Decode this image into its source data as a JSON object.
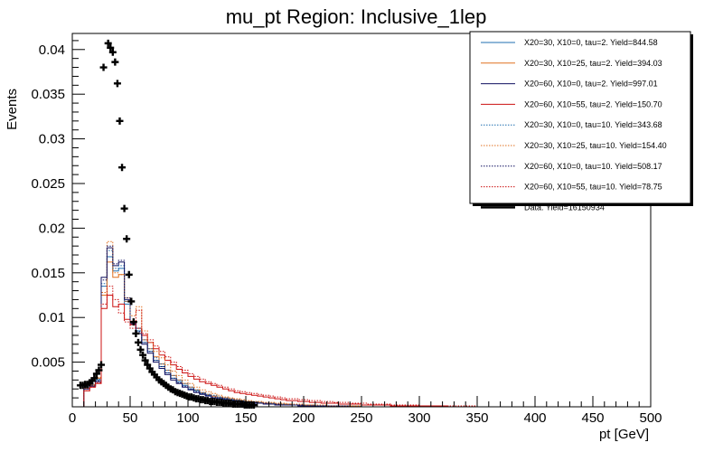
{
  "chart_data": {
    "type": "histogram",
    "title": "mu_pt Region: Inclusive_1lep",
    "xlabel": "pt [GeV]",
    "ylabel": "Events",
    "xlim": [
      0,
      500
    ],
    "ylim": [
      0,
      0.0418
    ],
    "x_ticks": [
      0,
      50,
      100,
      150,
      200,
      250,
      300,
      350,
      400,
      450,
      500
    ],
    "x_tick_labels": [
      "0",
      "50",
      "100",
      "150",
      "200",
      "250",
      "300",
      "350",
      "400",
      "450",
      "500"
    ],
    "y_ticks": [
      0.005,
      0.01,
      0.015,
      0.02,
      0.025,
      0.03,
      0.035,
      0.04
    ],
    "y_tick_labels": [
      "0.005",
      "0.01",
      "0.015",
      "0.02",
      "0.025",
      "0.03",
      "0.035",
      "0.04"
    ],
    "bin_edges_start": 0,
    "bin_width": 5,
    "legend_position": "top-right",
    "series": [
      {
        "name": "X20=30, X10=0, tau=2. Yield=844.58",
        "label": "X20=30, X10=0, tau=2. Yield=844.58",
        "color": "#1f6fb0",
        "style": "solid",
        "values": [
          0.0,
          0.0,
          0.0022,
          0.0025,
          0.003,
          0.0135,
          0.0168,
          0.0152,
          0.0155,
          0.0115,
          0.0092,
          0.0085,
          0.0072,
          0.0062,
          0.0052,
          0.0045,
          0.0038,
          0.0032,
          0.0028,
          0.0024,
          0.002,
          0.0018,
          0.0015,
          0.0013,
          0.0012,
          0.001,
          0.0009,
          0.0008,
          0.0007,
          0.0006,
          0.0005,
          0.0005,
          0.0004,
          0.0004,
          0.0003,
          0.0003,
          0.0003,
          0.0002,
          0.0002,
          0.0002,
          0.0002,
          0.0001,
          0.0001,
          0.0001,
          0.0001,
          0.0001,
          0.0001,
          0.0001,
          0.0001,
          0.0001,
          0.0,
          0.0,
          0.0,
          0.0,
          0.0,
          0.0,
          0.0,
          0.0,
          0.0,
          0.0,
          0.0,
          0.0,
          0.0,
          0.0,
          0.0,
          0.0,
          0.0,
          0.0,
          0.0,
          0.0,
          0.0,
          0.0,
          0.0,
          0.0,
          0.0,
          0.0,
          0.0,
          0.0,
          0.0,
          0.0,
          0.0,
          0.0,
          0.0,
          0.0,
          0.0,
          0.0,
          0.0,
          0.0,
          0.0,
          0.0,
          0.0,
          0.0,
          0.0,
          0.0,
          0.0,
          0.0,
          0.0,
          0.0,
          0.0,
          0.0
        ]
      },
      {
        "name": "X20=30, X10=25, tau=2. Yield=394.03",
        "label": "X20=30, X10=25, tau=2. Yield=394.03",
        "color": "#e07020",
        "style": "solid",
        "values": [
          0.0,
          0.0,
          0.0021,
          0.0024,
          0.0032,
          0.0125,
          0.0162,
          0.0145,
          0.0148,
          0.0118,
          0.0095,
          0.0088,
          0.0075,
          0.0065,
          0.0056,
          0.0048,
          0.0041,
          0.0035,
          0.003,
          0.0026,
          0.0022,
          0.0019,
          0.0016,
          0.0014,
          0.0012,
          0.0011,
          0.001,
          0.0009,
          0.0008,
          0.0007,
          0.0006,
          0.0005,
          0.0005,
          0.0004,
          0.0004,
          0.0003,
          0.0003,
          0.0003,
          0.0002,
          0.0002,
          0.0002,
          0.0002,
          0.0001,
          0.0001,
          0.0001,
          0.0001,
          0.0001,
          0.0001,
          0.0001,
          0.0001,
          0.0,
          0.0,
          0.0,
          0.0,
          0.0,
          0.0,
          0.0,
          0.0,
          0.0,
          0.0,
          0.0,
          0.0,
          0.0,
          0.0,
          0.0,
          0.0,
          0.0,
          0.0,
          0.0,
          0.0,
          0.0,
          0.0,
          0.0,
          0.0,
          0.0,
          0.0,
          0.0,
          0.0,
          0.0,
          0.0,
          0.0,
          0.0,
          0.0,
          0.0,
          0.0,
          0.0,
          0.0,
          0.0,
          0.0,
          0.0,
          0.0,
          0.0,
          0.0,
          0.0,
          0.0,
          0.0,
          0.0,
          0.0,
          0.0,
          0.0
        ]
      },
      {
        "name": "X20=60, X10=0, tau=2. Yield=997.01",
        "label": "X20=60, X10=0, tau=2. Yield=997.01",
        "color": "#101060",
        "style": "solid",
        "values": [
          0.0,
          0.0,
          0.002,
          0.0023,
          0.0028,
          0.0145,
          0.0178,
          0.0158,
          0.0162,
          0.012,
          0.0093,
          0.0082,
          0.007,
          0.006,
          0.005,
          0.0043,
          0.0036,
          0.003,
          0.0026,
          0.0022,
          0.0019,
          0.0016,
          0.0014,
          0.0012,
          0.001,
          0.0009,
          0.0008,
          0.0007,
          0.0006,
          0.0005,
          0.0005,
          0.0004,
          0.0004,
          0.0003,
          0.0003,
          0.0002,
          0.0002,
          0.0002,
          0.0002,
          0.0001,
          0.0001,
          0.0001,
          0.0001,
          0.0001,
          0.0001,
          0.0001,
          0.0001,
          0.0001,
          0.0,
          0.0,
          0.0,
          0.0,
          0.0,
          0.0,
          0.0,
          0.0,
          0.0,
          0.0,
          0.0,
          0.0,
          0.0,
          0.0,
          0.0,
          0.0,
          0.0,
          0.0,
          0.0,
          0.0,
          0.0,
          0.0,
          0.0,
          0.0,
          0.0,
          0.0,
          0.0,
          0.0,
          0.0,
          0.0,
          0.0,
          0.0,
          0.0,
          0.0,
          0.0,
          0.0,
          0.0,
          0.0,
          0.0,
          0.0,
          0.0,
          0.0,
          0.0,
          0.0,
          0.0,
          0.0,
          0.0,
          0.0,
          0.0,
          0.0,
          0.0,
          0.0
        ]
      },
      {
        "name": "X20=60, X10=55, tau=2. Yield=150.70",
        "label": "X20=60, X10=55, tau=2. Yield=150.70",
        "color": "#cc1111",
        "style": "solid",
        "values": [
          0.0,
          0.0,
          0.0018,
          0.0022,
          0.0026,
          0.011,
          0.0125,
          0.0112,
          0.0115,
          0.0098,
          0.0092,
          0.0088,
          0.008,
          0.0072,
          0.0065,
          0.0058,
          0.0052,
          0.0047,
          0.0042,
          0.0038,
          0.0034,
          0.0031,
          0.0028,
          0.0026,
          0.0024,
          0.0022,
          0.002,
          0.0018,
          0.0016,
          0.0015,
          0.0014,
          0.0013,
          0.0012,
          0.0011,
          0.001,
          0.0009,
          0.0008,
          0.0007,
          0.0007,
          0.0006,
          0.0006,
          0.0005,
          0.0005,
          0.0004,
          0.0004,
          0.0004,
          0.0003,
          0.0003,
          0.0003,
          0.0003,
          0.0002,
          0.0002,
          0.0002,
          0.0002,
          0.0002,
          0.0001,
          0.0001,
          0.0001,
          0.0001,
          0.0001,
          0.0001,
          0.0001,
          0.0001,
          0.0001,
          0.0001,
          0.0,
          0.0,
          0.0,
          0.0,
          0.0,
          0.0,
          0.0,
          0.0,
          0.0,
          0.0,
          0.0,
          0.0,
          0.0,
          0.0,
          0.0,
          0.0,
          0.0,
          0.0,
          0.0,
          0.0,
          0.0,
          0.0,
          0.0,
          0.0,
          0.0,
          0.0,
          0.0,
          0.0,
          0.0,
          0.0,
          0.0,
          0.0,
          0.0,
          0.0,
          0.0
        ]
      },
      {
        "name": "X20=30, X10=0, tau=10. Yield=343.68",
        "label": "X20=30, X10=0, tau=10. Yield=343.68",
        "color": "#1f6fb0",
        "style": "dotted",
        "values": [
          0.0,
          0.0,
          0.0022,
          0.0026,
          0.0031,
          0.0138,
          0.0175,
          0.0155,
          0.0158,
          0.0118,
          0.0095,
          0.0088,
          0.0075,
          0.0065,
          0.0055,
          0.0048,
          0.0041,
          0.0035,
          0.003,
          0.0026,
          0.0022,
          0.0019,
          0.0016,
          0.0014,
          0.0013,
          0.0011,
          0.001,
          0.0009,
          0.0008,
          0.0007,
          0.0006,
          0.0005,
          0.0005,
          0.0004,
          0.0004,
          0.0003,
          0.0003,
          0.0003,
          0.0002,
          0.0002,
          0.0002,
          0.0002,
          0.0001,
          0.0001,
          0.0001,
          0.0001,
          0.0001,
          0.0001,
          0.0001,
          0.0001,
          0.0,
          0.0,
          0.0,
          0.0,
          0.0,
          0.0,
          0.0,
          0.0,
          0.0,
          0.0,
          0.0,
          0.0,
          0.0,
          0.0,
          0.0,
          0.0,
          0.0,
          0.0,
          0.0,
          0.0,
          0.0,
          0.0,
          0.0,
          0.0,
          0.0,
          0.0,
          0.0,
          0.0,
          0.0,
          0.0,
          0.0,
          0.0,
          0.0,
          0.0,
          0.0,
          0.0,
          0.0,
          0.0,
          0.0,
          0.0,
          0.0,
          0.0,
          0.0,
          0.0,
          0.0,
          0.0,
          0.0,
          0.0,
          0.0,
          0.0
        ]
      },
      {
        "name": "X20=30, X10=25, tau=10. Yield=154.40",
        "label": "X20=30, X10=25, tau=10. Yield=154.40",
        "color": "#e07020",
        "style": "dotted",
        "values": [
          0.0,
          0.0,
          0.0021,
          0.0025,
          0.0033,
          0.0128,
          0.0185,
          0.015,
          0.0148,
          0.0122,
          0.0102,
          0.0112,
          0.0085,
          0.0072,
          0.0062,
          0.0055,
          0.0047,
          0.004,
          0.0035,
          0.003,
          0.0026,
          0.0022,
          0.0019,
          0.0017,
          0.0015,
          0.0013,
          0.0011,
          0.001,
          0.0009,
          0.0008,
          0.0007,
          0.0006,
          0.0006,
          0.0005,
          0.0005,
          0.0004,
          0.0004,
          0.0003,
          0.0003,
          0.0003,
          0.0002,
          0.0002,
          0.0002,
          0.0002,
          0.0001,
          0.0001,
          0.0001,
          0.0001,
          0.0001,
          0.0001,
          0.0,
          0.0,
          0.0,
          0.0,
          0.0,
          0.0,
          0.0,
          0.0,
          0.0,
          0.0,
          0.0,
          0.0,
          0.0,
          0.0,
          0.0,
          0.0,
          0.0,
          0.0,
          0.0,
          0.0,
          0.0,
          0.0,
          0.0,
          0.0,
          0.0,
          0.0,
          0.0,
          0.0,
          0.0,
          0.0,
          0.0,
          0.0,
          0.0,
          0.0,
          0.0,
          0.0,
          0.0,
          0.0,
          0.0,
          0.0,
          0.0,
          0.0,
          0.0,
          0.0,
          0.0,
          0.0,
          0.0,
          0.0,
          0.0,
          0.0
        ]
      },
      {
        "name": "X20=60, X10=0, tau=10. Yield=508.17",
        "label": "X20=60, X10=0, tau=10. Yield=508.17",
        "color": "#101060",
        "style": "dotted",
        "values": [
          0.0,
          0.0,
          0.002,
          0.0024,
          0.0029,
          0.0142,
          0.018,
          0.016,
          0.0164,
          0.0122,
          0.0094,
          0.0084,
          0.0072,
          0.0062,
          0.0052,
          0.0045,
          0.0038,
          0.0032,
          0.0027,
          0.0023,
          0.002,
          0.0017,
          0.0015,
          0.0013,
          0.0011,
          0.001,
          0.0009,
          0.0008,
          0.0007,
          0.0006,
          0.0005,
          0.0005,
          0.0004,
          0.0004,
          0.0003,
          0.0003,
          0.0002,
          0.0002,
          0.0002,
          0.0002,
          0.0001,
          0.0001,
          0.0001,
          0.0001,
          0.0001,
          0.0001,
          0.0001,
          0.0001,
          0.0,
          0.0,
          0.0,
          0.0,
          0.0,
          0.0,
          0.0,
          0.0,
          0.0,
          0.0,
          0.0,
          0.0,
          0.0,
          0.0,
          0.0,
          0.0,
          0.0,
          0.0,
          0.0,
          0.0,
          0.0,
          0.0,
          0.0,
          0.0,
          0.0,
          0.0,
          0.0,
          0.0,
          0.0,
          0.0,
          0.0,
          0.0,
          0.0,
          0.0,
          0.0,
          0.0,
          0.0,
          0.0,
          0.0,
          0.0,
          0.0,
          0.0,
          0.0,
          0.0,
          0.0,
          0.0,
          0.0,
          0.0,
          0.0,
          0.0,
          0.0,
          0.0
        ]
      },
      {
        "name": "X20=60, X10=55, tau=10. Yield=78.75",
        "label": "X20=60, X10=55, tau=10. Yield=78.75",
        "color": "#cc1111",
        "style": "dotted",
        "values": [
          0.0,
          0.0,
          0.0018,
          0.0022,
          0.0027,
          0.0115,
          0.0135,
          0.012,
          0.0105,
          0.0095,
          0.0088,
          0.0108,
          0.0082,
          0.0075,
          0.0068,
          0.0062,
          0.0056,
          0.005,
          0.0045,
          0.0041,
          0.0037,
          0.0034,
          0.0031,
          0.0028,
          0.0026,
          0.0024,
          0.0022,
          0.002,
          0.0018,
          0.0017,
          0.0016,
          0.0015,
          0.0014,
          0.0013,
          0.0012,
          0.0011,
          0.001,
          0.0009,
          0.0009,
          0.0008,
          0.0008,
          0.0007,
          0.0007,
          0.0006,
          0.0006,
          0.0005,
          0.0005,
          0.0005,
          0.0004,
          0.0004,
          0.0004,
          0.0003,
          0.0003,
          0.0003,
          0.0003,
          0.0002,
          0.0002,
          0.0002,
          0.0002,
          0.0002,
          0.0001,
          0.0001,
          0.0001,
          0.0001,
          0.0001,
          0.0001,
          0.0001,
          0.0001,
          0.0001,
          0.0001,
          0.0,
          0.0,
          0.0,
          0.0,
          0.0,
          0.0,
          0.0,
          0.0,
          0.0,
          0.0,
          0.0,
          0.0,
          0.0,
          0.0,
          0.0,
          0.0,
          0.0,
          0.0,
          0.0,
          0.0,
          0.0,
          0.0,
          0.0,
          0.0,
          0.0,
          0.0,
          0.0,
          0.0,
          0.0,
          0.0
        ]
      }
    ],
    "data_series": {
      "name": "Data. Yield=16150934",
      "label": "Data. Yield=16150934",
      "color": "#000000",
      "points": [
        [
          7,
          0.0024
        ],
        [
          9,
          0.0024
        ],
        [
          11,
          0.0025
        ],
        [
          13,
          0.0025
        ],
        [
          15,
          0.0027
        ],
        [
          17,
          0.0029
        ],
        [
          19,
          0.0032
        ],
        [
          21,
          0.0037
        ],
        [
          23,
          0.0041
        ],
        [
          25,
          0.0047
        ],
        [
          27,
          0.038
        ],
        [
          31,
          0.0407
        ],
        [
          33,
          0.0402
        ],
        [
          35,
          0.0397
        ],
        [
          37,
          0.0386
        ],
        [
          39,
          0.0362
        ],
        [
          41,
          0.032
        ],
        [
          43,
          0.0268
        ],
        [
          45,
          0.0222
        ],
        [
          47,
          0.0188
        ],
        [
          49,
          0.0148
        ],
        [
          51,
          0.0118
        ],
        [
          53,
          0.0095
        ],
        [
          55,
          0.0082
        ],
        [
          57,
          0.0072
        ],
        [
          59,
          0.0064
        ],
        [
          61,
          0.0058
        ],
        [
          63,
          0.0052
        ],
        [
          65,
          0.0047
        ],
        [
          67,
          0.0043
        ],
        [
          69,
          0.0039
        ],
        [
          71,
          0.0036
        ],
        [
          73,
          0.0033
        ],
        [
          75,
          0.003
        ],
        [
          77,
          0.0028
        ],
        [
          79,
          0.0026
        ],
        [
          81,
          0.0024
        ],
        [
          83,
          0.0022
        ],
        [
          85,
          0.002
        ],
        [
          87,
          0.0019
        ],
        [
          89,
          0.0017
        ],
        [
          91,
          0.0016
        ],
        [
          93,
          0.0015
        ],
        [
          95,
          0.0014
        ],
        [
          97,
          0.0013
        ],
        [
          99,
          0.0012
        ],
        [
          101,
          0.0011
        ],
        [
          103,
          0.0011
        ],
        [
          105,
          0.001
        ],
        [
          107,
          0.0009
        ],
        [
          109,
          0.0009
        ],
        [
          111,
          0.0008
        ],
        [
          113,
          0.0008
        ],
        [
          115,
          0.0007
        ],
        [
          117,
          0.0007
        ],
        [
          119,
          0.0006
        ],
        [
          121,
          0.0006
        ],
        [
          123,
          0.0006
        ],
        [
          125,
          0.0005
        ],
        [
          127,
          0.0005
        ],
        [
          129,
          0.0005
        ],
        [
          131,
          0.0004
        ],
        [
          133,
          0.0004
        ],
        [
          135,
          0.0004
        ],
        [
          137,
          0.0004
        ],
        [
          139,
          0.0003
        ],
        [
          141,
          0.0003
        ],
        [
          143,
          0.0003
        ],
        [
          145,
          0.0003
        ],
        [
          147,
          0.0003
        ],
        [
          149,
          0.0002
        ],
        [
          151,
          0.0002
        ],
        [
          153,
          0.0002
        ],
        [
          155,
          0.0002
        ],
        [
          157,
          0.0002
        ]
      ]
    }
  }
}
